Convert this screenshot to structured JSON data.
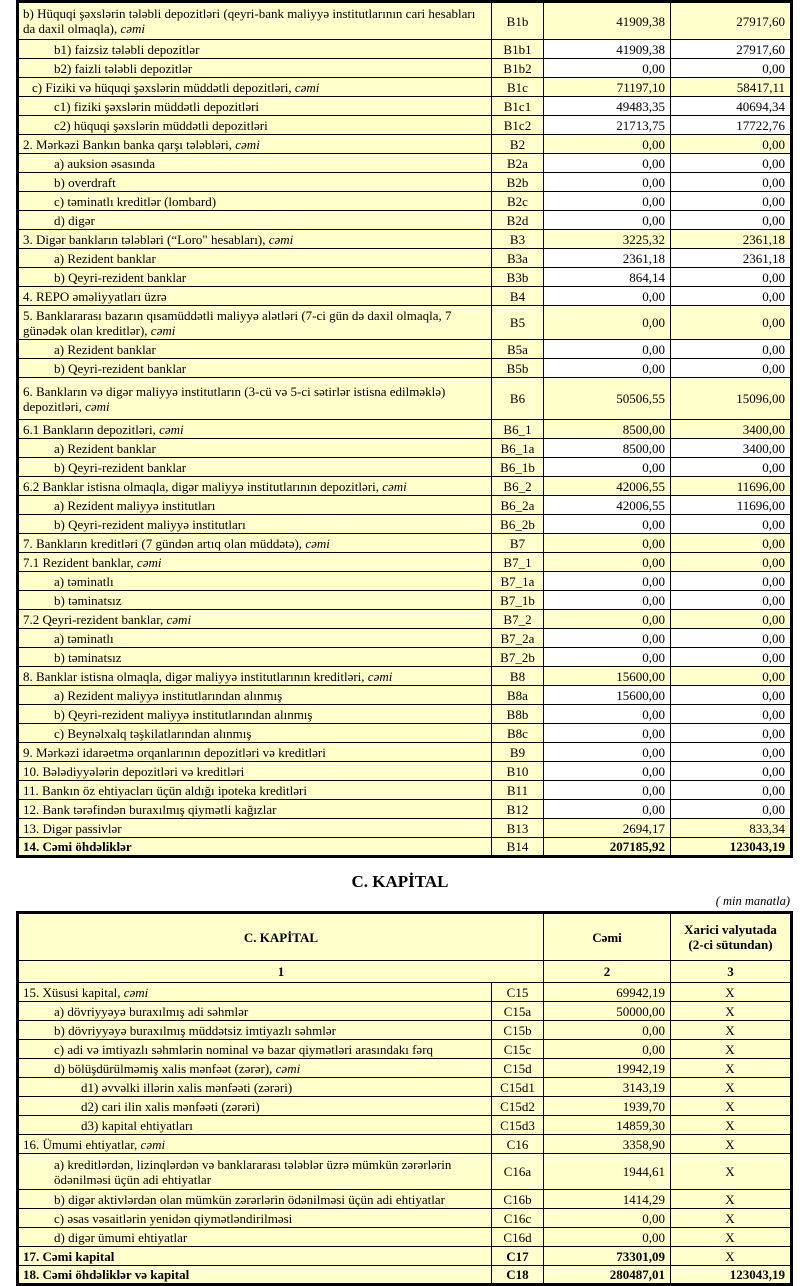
{
  "colors": {
    "cell_yellow": "#FFFFCC",
    "cell_white": "#FFFFFF",
    "border": "#000000",
    "text": "#000000"
  },
  "liabilities_table": {
    "rows": [
      {
        "label": "b) Hüquqi şəxslərin tələbli depozitləri (qeyri-bank maliyyə institutlarının cari hesabları da daxil olmaqla), cəmi",
        "code": "B1b",
        "v1": "41909,38",
        "v2": "27917,60",
        "ind": 0,
        "hl": true,
        "h": 38
      },
      {
        "label": "b1) faizsiz tələbli depozitlər",
        "code": "B1b1",
        "v1": "41909,38",
        "v2": "27917,60",
        "ind": 2,
        "hl": false
      },
      {
        "label": "b2) faizli tələbli depozitlər",
        "code": "B1b2",
        "v1": "0,00",
        "v2": "0,00",
        "ind": 2,
        "hl": false
      },
      {
        "label": "c) Fiziki və hüquqi şəxslərin müddətli depozitləri, cəmi",
        "code": "B1c",
        "v1": "71197,10",
        "v2": "58417,11",
        "ind": 1,
        "hl": true
      },
      {
        "label": "c1) fiziki şəxslərin müddətli depozitləri",
        "code": "B1c1",
        "v1": "49483,35",
        "v2": "40694,34",
        "ind": 2,
        "hl": false
      },
      {
        "label": "c2) hüquqi şəxslərin müddətli depozitləri",
        "code": "B1c2",
        "v1": "21713,75",
        "v2": "17722,76",
        "ind": 2,
        "hl": false
      },
      {
        "label": "2. Mərkəzi Bankın banka qarşı tələbləri, cəmi",
        "code": "B2",
        "v1": "0,00",
        "v2": "0,00",
        "ind": 0,
        "hl": true
      },
      {
        "label": "a) auksion əsasında",
        "code": "B2a",
        "v1": "0,00",
        "v2": "0,00",
        "ind": 2,
        "hl": false
      },
      {
        "label": "b) overdraft",
        "code": "B2b",
        "v1": "0,00",
        "v2": "0,00",
        "ind": 2,
        "hl": false
      },
      {
        "label": "c) təminatlı kreditlər (lombard)",
        "code": "B2c",
        "v1": "0,00",
        "v2": "0,00",
        "ind": 2,
        "hl": false
      },
      {
        "label": "d) digər",
        "code": "B2d",
        "v1": "0,00",
        "v2": "0,00",
        "ind": 2,
        "hl": false
      },
      {
        "label": "3. Digər bankların tələbləri (“Loro\" hesabları), cəmi",
        "code": "B3",
        "v1": "3225,32",
        "v2": "2361,18",
        "ind": 0,
        "hl": true
      },
      {
        "label": "a) Rezident banklar",
        "code": "B3a",
        "v1": "2361,18",
        "v2": "2361,18",
        "ind": 2,
        "hl": false
      },
      {
        "label": "b) Qeyri-rezident banklar",
        "code": "B3b",
        "v1": "864,14",
        "v2": "0,00",
        "ind": 2,
        "hl": false
      },
      {
        "label": "4. REPO əməliyyatları  üzrə",
        "code": "B4",
        "v1": "0,00",
        "v2": "0,00",
        "ind": 0,
        "hl": false
      },
      {
        "label": "5. Banklararası bazarın qısamüddətli maliyyə alətləri (7-ci gün də daxil olmaqla, 7 günədək olan kreditlər), cəmi",
        "code": "B5",
        "v1": "0,00",
        "v2": "0,00",
        "ind": 0,
        "hl": true,
        "h": 34
      },
      {
        "label": "a) Rezident banklar",
        "code": "B5a",
        "v1": "0,00",
        "v2": "0,00",
        "ind": 2,
        "hl": false
      },
      {
        "label": "b) Qeyri-rezident banklar",
        "code": "B5b",
        "v1": "0,00",
        "v2": "0,00",
        "ind": 2,
        "hl": false
      },
      {
        "label": "6. Bankların və digər maliyyə institutların (3-cü və 5-ci sətirlər istisna edilməklə) depozitləri, cəmi",
        "code": "B6",
        "v1": "50506,55",
        "v2": "15096,00",
        "ind": 0,
        "hl": true,
        "h": 42
      },
      {
        "label": "6.1  Bankların depozitləri, cəmi",
        "code": "B6_1",
        "v1": "8500,00",
        "v2": "3400,00",
        "ind": 0,
        "hl": true
      },
      {
        "label": "a) Rezident banklar",
        "code": "B6_1a",
        "v1": "8500,00",
        "v2": "3400,00",
        "ind": 2,
        "hl": false
      },
      {
        "label": "b) Qeyri-rezident banklar",
        "code": "B6_1b",
        "v1": "0,00",
        "v2": "0,00",
        "ind": 2,
        "hl": false
      },
      {
        "label": "6.2 Banklar istisna olmaqla, digər maliyyə institutlarının depozitləri, cəmi",
        "code": "B6_2",
        "v1": "42006,55",
        "v2": "11696,00",
        "ind": 0,
        "hl": true
      },
      {
        "label": "a) Rezident maliyyə institutları",
        "code": "B6_2a",
        "v1": "42006,55",
        "v2": "11696,00",
        "ind": 2,
        "hl": false
      },
      {
        "label": "b) Qeyri-rezident maliyyə institutları",
        "code": "B6_2b",
        "v1": "0,00",
        "v2": "0,00",
        "ind": 2,
        "hl": false
      },
      {
        "label": "7. Bankların kreditləri (7 gündən artıq olan müddətə), cəmi",
        "code": "B7",
        "v1": "0,00",
        "v2": "0,00",
        "ind": 0,
        "hl": true
      },
      {
        "label": "7.1 Rezident banklar, cəmi",
        "code": "B7_1",
        "v1": "0,00",
        "v2": "0,00",
        "ind": 0,
        "hl": true
      },
      {
        "label": "a) təminatlı",
        "code": "B7_1a",
        "v1": "0,00",
        "v2": "0,00",
        "ind": 2,
        "hl": false
      },
      {
        "label": "b) təminatsız",
        "code": "B7_1b",
        "v1": "0,00",
        "v2": "0,00",
        "ind": 2,
        "hl": false
      },
      {
        "label": "7.2 Qeyri-rezident banklar, cəmi",
        "code": "B7_2",
        "v1": "0,00",
        "v2": "0,00",
        "ind": 0,
        "hl": true
      },
      {
        "label": "a) təminatlı",
        "code": "B7_2a",
        "v1": "0,00",
        "v2": "0,00",
        "ind": 2,
        "hl": false
      },
      {
        "label": "b) təminatsız",
        "code": "B7_2b",
        "v1": "0,00",
        "v2": "0,00",
        "ind": 2,
        "hl": false
      },
      {
        "label": "8. Banklar istisna olmaqla, digər maliyyə institutlarının kreditləri, cəmi",
        "code": "B8",
        "v1": "15600,00",
        "v2": "0,00",
        "ind": 0,
        "hl": true
      },
      {
        "label": "a) Rezident maliyyə institutlarından alınmış",
        "code": "B8a",
        "v1": "15600,00",
        "v2": "0,00",
        "ind": 2,
        "hl": false
      },
      {
        "label": "b) Qeyri-rezident maliyyə institutlarından alınmış",
        "code": "B8b",
        "v1": "0,00",
        "v2": "0,00",
        "ind": 2,
        "hl": false
      },
      {
        "label": "c) Beynəlxalq təşkilatlarından alınmış",
        "code": "B8c",
        "v1": "0,00",
        "v2": "0,00",
        "ind": 2,
        "hl": false
      },
      {
        "label": "9. Mərkəzi idarəetmə orqanlarının depozitləri və kreditləri",
        "code": "B9",
        "v1": "0,00",
        "v2": "0,00",
        "ind": 0,
        "hl": false
      },
      {
        "label": "10. Bələdiyyələrin depozitləri və kreditləri",
        "code": "B10",
        "v1": "0,00",
        "v2": "0,00",
        "ind": 0,
        "hl": false
      },
      {
        "label": "11. Bankın öz ehtiyacları üçün aldığı ipoteka kreditləri",
        "code": "B11",
        "v1": "0,00",
        "v2": "0,00",
        "ind": 0,
        "hl": false
      },
      {
        "label": "12. Bank tərəfindən buraxılmış qiymətli kağızlar",
        "code": "B12",
        "v1": "0,00",
        "v2": "0,00",
        "ind": 0,
        "hl": false
      },
      {
        "label": "13. Digər passivlər",
        "code": "B13",
        "v1": "2694,17",
        "v2": "833,34",
        "ind": 0,
        "hl": true
      },
      {
        "label": "14. Cəmi öhdəliklər",
        "code": "B14",
        "v1": "207185,92",
        "v2": "123043,19",
        "ind": 0,
        "hl": true,
        "bold": [
          "label",
          "v1",
          "v2"
        ]
      }
    ]
  },
  "capital": {
    "title": "C. KAPİTAL",
    "unit_note": "( min manatla)",
    "header": {
      "col1": "C. KAPİTAL",
      "col2": "Cəmi",
      "col3": "Xarici valyutada (2-ci sütundan)"
    },
    "numbers": [
      "1",
      "2",
      "3"
    ],
    "rows": [
      {
        "label": "15. Xüsusi kapital, cəmi",
        "code": "C15",
        "v1": "69942,19",
        "v2": "X",
        "ind": 0
      },
      {
        "label": "a) dövriyyəyə buraxılmış adi səhmlər",
        "code": "C15a",
        "v1": "50000,00",
        "v2": "X",
        "ind": 2
      },
      {
        "label": "b) dövriyyəyə buraxılmış müddətsiz imtiyazlı səhmlər",
        "code": "C15b",
        "v1": "0,00",
        "v2": "X",
        "ind": 2
      },
      {
        "label": "c) adi və imtiyazlı səhmlərin nominal və bazar qiymətləri arasındakı fərq",
        "code": "C15c",
        "v1": "0,00",
        "v2": "X",
        "ind": 2
      },
      {
        "label": "d) bölüşdürülməmiş xalis mənfəət (zərər), cəmi",
        "code": "C15d",
        "v1": "19942,19",
        "v2": "X",
        "ind": 2
      },
      {
        "label": "d1) əvvəlki illərin xalis mənfəəti (zərəri)",
        "code": "C15d1",
        "v1": "3143,19",
        "v2": "X",
        "ind": 3
      },
      {
        "label": "d2) cari ilin xalis mənfəəti (zərəri)",
        "code": "C15d2",
        "v1": "1939,70",
        "v2": "X",
        "ind": 3
      },
      {
        "label": "d3) kapital ehtiyatları",
        "code": "C15d3",
        "v1": "14859,30",
        "v2": "X",
        "ind": 3
      },
      {
        "label": "16. Ümumi ehtiyatlar, cəmi",
        "code": "C16",
        "v1": "3358,90",
        "v2": "X",
        "ind": 0
      },
      {
        "label": "a) kreditlərdən, lizinqlərdən və banklararası  tələblər üzrə mümkün zərərlərin ödənilməsi üçün adi ehtiyatlar",
        "code": "C16a",
        "v1": "1944,61",
        "v2": "X",
        "ind": 2,
        "h": 36
      },
      {
        "label": "b) digər aktivlərdən olan mümkün zərərlərin ödənilməsi üçün adi ehtiyatlar",
        "code": "C16b",
        "v1": "1414,29",
        "v2": "X",
        "ind": 2
      },
      {
        "label": "c) əsas vəsaitlərin yenidən qiymətləndirilməsi",
        "code": "C16c",
        "v1": "0,00",
        "v2": "X",
        "ind": 2
      },
      {
        "label": "d) digər ümumi ehtiyatlar",
        "code": "C16d",
        "v1": "0,00",
        "v2": "X",
        "ind": 2
      },
      {
        "label": "17. Cəmi kapital",
        "code": "C17",
        "v1": "73301,09",
        "v2": "X",
        "ind": 0,
        "bold": [
          "label",
          "code",
          "v1"
        ]
      },
      {
        "label": "18. Cəmi öhdəliklər və kapital",
        "code": "C18",
        "v1": "280487,01",
        "v2": "123043,19",
        "ind": 0,
        "bold": [
          "label",
          "code",
          "v1",
          "v2"
        ]
      }
    ]
  }
}
